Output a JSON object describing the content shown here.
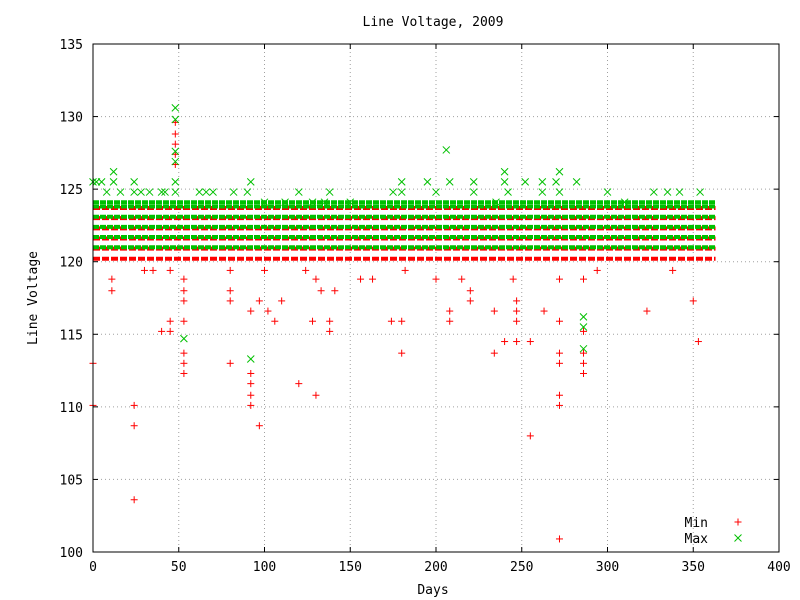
{
  "chart_data": {
    "type": "scatter",
    "title": "Line Voltage, 2009",
    "xlabel": "Days",
    "ylabel": "Line Voltage",
    "xlim": [
      0,
      400
    ],
    "ylim": [
      100,
      135
    ],
    "xticks": [
      "0",
      "50",
      "100",
      "150",
      "200",
      "250",
      "300",
      "350",
      "400"
    ],
    "yticks": [
      "100",
      "105",
      "110",
      "115",
      "120",
      "125",
      "130",
      "135"
    ],
    "grid": true,
    "legend_position": "bottom-right",
    "series": [
      {
        "name": "Min",
        "marker": "plus",
        "color": "#ff0000",
        "band": {
          "x_range": [
            0,
            363
          ],
          "y_levels": [
            120.2,
            120.9,
            121.6,
            122.3,
            123.0,
            123.7
          ]
        },
        "points": [
          [
            0,
            113.0
          ],
          [
            0,
            110.1
          ],
          [
            11,
            118.8
          ],
          [
            11,
            118.0
          ],
          [
            24,
            110.1
          ],
          [
            24,
            108.7
          ],
          [
            24,
            103.6
          ],
          [
            30,
            119.4
          ],
          [
            35,
            119.4
          ],
          [
            40,
            115.2
          ],
          [
            45,
            119.4
          ],
          [
            45,
            115.9
          ],
          [
            45,
            115.2
          ],
          [
            48,
            129.6
          ],
          [
            48,
            128.8
          ],
          [
            48,
            128.1
          ],
          [
            48,
            127.4
          ],
          [
            48,
            126.7
          ],
          [
            53,
            115.9
          ],
          [
            53,
            113.7
          ],
          [
            53,
            113.0
          ],
          [
            53,
            112.3
          ],
          [
            53,
            117.3
          ],
          [
            53,
            118.0
          ],
          [
            53,
            118.8
          ],
          [
            80,
            119.4
          ],
          [
            80,
            118.0
          ],
          [
            80,
            117.3
          ],
          [
            80,
            113.0
          ],
          [
            92,
            116.6
          ],
          [
            92,
            112.3
          ],
          [
            92,
            111.6
          ],
          [
            92,
            110.8
          ],
          [
            92,
            110.1
          ],
          [
            97,
            108.7
          ],
          [
            97,
            117.3
          ],
          [
            100,
            119.4
          ],
          [
            102,
            116.6
          ],
          [
            106,
            115.9
          ],
          [
            110,
            117.3
          ],
          [
            120,
            111.6
          ],
          [
            124,
            119.4
          ],
          [
            128,
            115.9
          ],
          [
            130,
            110.8
          ],
          [
            130,
            118.8
          ],
          [
            133,
            118.0
          ],
          [
            138,
            115.2
          ],
          [
            138,
            115.9
          ],
          [
            141,
            118.0
          ],
          [
            156,
            118.8
          ],
          [
            163,
            118.8
          ],
          [
            174,
            115.9
          ],
          [
            180,
            115.9
          ],
          [
            180,
            113.7
          ],
          [
            182,
            119.4
          ],
          [
            200,
            118.8
          ],
          [
            208,
            116.6
          ],
          [
            208,
            115.9
          ],
          [
            215,
            118.8
          ],
          [
            220,
            117.3
          ],
          [
            220,
            118.0
          ],
          [
            234,
            116.6
          ],
          [
            234,
            113.7
          ],
          [
            240,
            114.5
          ],
          [
            245,
            118.8
          ],
          [
            247,
            117.3
          ],
          [
            247,
            116.6
          ],
          [
            247,
            115.9
          ],
          [
            247,
            114.5
          ],
          [
            255,
            108.0
          ],
          [
            255,
            114.5
          ],
          [
            263,
            116.6
          ],
          [
            272,
            113.0
          ],
          [
            272,
            113.7
          ],
          [
            272,
            115.9
          ],
          [
            272,
            110.8
          ],
          [
            272,
            110.1
          ],
          [
            272,
            100.9
          ],
          [
            272,
            118.8
          ],
          [
            286,
            113.7
          ],
          [
            286,
            113.0
          ],
          [
            286,
            112.3
          ],
          [
            286,
            115.2
          ],
          [
            286,
            118.8
          ],
          [
            294,
            119.4
          ],
          [
            323,
            116.6
          ],
          [
            338,
            119.4
          ],
          [
            350,
            117.3
          ],
          [
            353,
            114.5
          ]
        ]
      },
      {
        "name": "Max",
        "marker": "cross",
        "color": "#00c000",
        "band": {
          "x_range": [
            0,
            363
          ],
          "y_levels": [
            121.0,
            121.7,
            122.4,
            123.1,
            123.8,
            124.1
          ]
        },
        "points": [
          [
            0,
            125.5
          ],
          [
            2,
            125.5
          ],
          [
            5,
            125.5
          ],
          [
            8,
            124.8
          ],
          [
            12,
            126.2
          ],
          [
            12,
            125.5
          ],
          [
            16,
            124.8
          ],
          [
            24,
            125.5
          ],
          [
            24,
            124.8
          ],
          [
            28,
            124.8
          ],
          [
            33,
            124.8
          ],
          [
            40,
            124.8
          ],
          [
            42,
            124.8
          ],
          [
            48,
            130.6
          ],
          [
            48,
            129.8
          ],
          [
            48,
            127.6
          ],
          [
            48,
            126.9
          ],
          [
            48,
            125.5
          ],
          [
            48,
            124.8
          ],
          [
            53,
            114.7
          ],
          [
            62,
            124.8
          ],
          [
            66,
            124.8
          ],
          [
            70,
            124.8
          ],
          [
            82,
            124.8
          ],
          [
            90,
            124.8
          ],
          [
            92,
            125.5
          ],
          [
            92,
            113.3
          ],
          [
            100,
            124.1
          ],
          [
            112,
            124.1
          ],
          [
            120,
            124.8
          ],
          [
            128,
            124.1
          ],
          [
            135,
            124.1
          ],
          [
            138,
            124.8
          ],
          [
            150,
            124.1
          ],
          [
            175,
            124.8
          ],
          [
            180,
            125.5
          ],
          [
            180,
            124.8
          ],
          [
            195,
            125.5
          ],
          [
            200,
            124.8
          ],
          [
            206,
            127.7
          ],
          [
            208,
            125.5
          ],
          [
            222,
            125.5
          ],
          [
            222,
            124.8
          ],
          [
            235,
            124.1
          ],
          [
            240,
            126.2
          ],
          [
            240,
            125.5
          ],
          [
            242,
            124.8
          ],
          [
            252,
            125.5
          ],
          [
            262,
            125.5
          ],
          [
            262,
            124.8
          ],
          [
            270,
            125.5
          ],
          [
            272,
            126.2
          ],
          [
            272,
            124.8
          ],
          [
            282,
            125.5
          ],
          [
            286,
            116.2
          ],
          [
            286,
            115.5
          ],
          [
            286,
            114.0
          ],
          [
            300,
            124.8
          ],
          [
            310,
            124.1
          ],
          [
            327,
            124.8
          ],
          [
            335,
            124.8
          ],
          [
            342,
            124.8
          ],
          [
            354,
            124.8
          ]
        ]
      }
    ]
  }
}
